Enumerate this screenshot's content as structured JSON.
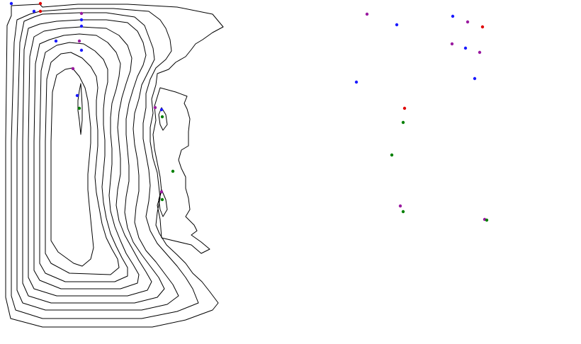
{
  "diagram": {
    "type": "contour-plot",
    "panels": [
      "left",
      "right"
    ],
    "line_color": "#000000",
    "marker_colors": {
      "blue": "#1a1aff",
      "red": "#e00000",
      "green": "#008000",
      "purple": "#9a1aa0"
    }
  }
}
